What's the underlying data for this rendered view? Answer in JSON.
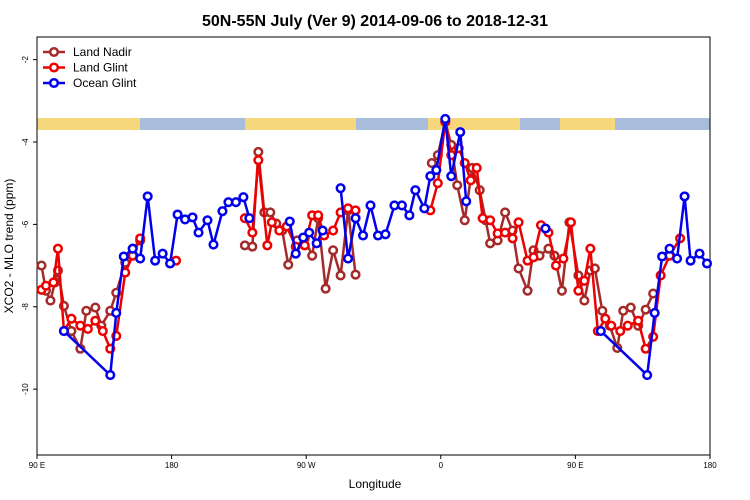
{
  "chart_data": {
    "type": "line",
    "title": "50N-55N July (Ver 9)   2014-09-06 to 2018-12-31",
    "x_label": "Longitude",
    "y_label": "XCO2 - MLO trend (ppm)",
    "xlim": [
      90,
      540
    ],
    "ylim": [
      -11.6,
      -1.45
    ],
    "xticks": [
      {
        "value": 90,
        "label": "90 E"
      },
      {
        "value": 180,
        "label": "180"
      },
      {
        "value": 270,
        "label": "90 W"
      },
      {
        "value": 360,
        "label": "0"
      },
      {
        "value": 450,
        "label": "90 E"
      },
      {
        "value": 540,
        "label": "180"
      }
    ],
    "yticks": [
      -10,
      -8,
      -6,
      -4,
      -2
    ],
    "legend": "upper left",
    "series": [
      {
        "name": "Land Nadir",
        "color": "#a52a2a",
        "x": [
          93,
          96,
          99,
          102,
          104,
          108,
          113,
          119,
          123,
          129,
          133,
          139,
          143,
          149,
          154,
          159,
          194,
          229,
          234,
          238,
          242,
          246,
          250,
          254,
          258,
          264,
          269,
          274,
          278,
          283,
          288,
          293,
          298,
          303,
          328,
          354,
          358,
          363,
          367,
          371,
          376,
          381,
          386,
          390,
          393,
          398,
          403,
          408,
          412,
          418,
          422,
          426,
          432,
          436,
          441,
          446,
          452,
          456,
          460,
          463,
          468,
          473,
          478,
          482,
          487,
          492,
          497,
          502
        ],
        "values": [
          -7.0,
          -7.61,
          -7.85,
          -7.41,
          -7.12,
          -7.98,
          -8.59,
          -9.02,
          -8.1,
          -8.02,
          -8.46,
          -8.1,
          -7.66,
          -6.93,
          -6.59,
          -6.39,
          null,
          -6.51,
          -6.54,
          -4.24,
          -5.71,
          -5.71,
          -5.98,
          -6.15,
          -6.98,
          -6.39,
          -6.34,
          -6.76,
          -5.85,
          -7.56,
          -6.63,
          -7.24,
          -5.66,
          -7.22,
          null,
          -4.51,
          -4.32,
          -3.51,
          -4.07,
          -5.05,
          -5.9,
          -4.63,
          -5.17,
          -5.9,
          -6.46,
          -6.39,
          -5.71,
          -6.15,
          -7.07,
          -7.61,
          -6.63,
          -6.76,
          -6.59,
          -6.76,
          -7.61,
          -5.95,
          -7.24,
          -7.85,
          -7.12,
          -7.07,
          -8.1,
          -8.46,
          -9.0,
          -8.1,
          -8.02,
          -8.46,
          -8.07,
          -7.68
        ]
      },
      {
        "name": "Land Glint",
        "color": "#ee0000",
        "x": [
          93,
          96,
          101,
          104,
          108,
          113,
          119,
          124,
          129,
          134,
          139,
          143,
          149,
          154,
          159,
          171,
          183,
          206,
          229,
          234,
          238,
          244,
          247,
          252,
          257,
          263,
          269,
          274,
          278,
          282,
          288,
          293,
          298,
          303,
          328,
          353,
          358,
          363,
          367,
          372,
          376,
          380,
          384,
          388,
          393,
          398,
          403,
          408,
          412,
          418,
          422,
          427,
          432,
          437,
          442,
          447,
          452,
          456,
          460,
          465,
          470,
          474,
          480,
          485,
          492,
          497,
          502,
          507,
          513,
          520
        ],
        "values": [
          -7.59,
          -7.49,
          -7.41,
          -6.59,
          -8.59,
          -8.29,
          -8.46,
          -8.54,
          -8.34,
          -8.59,
          -9.02,
          -8.71,
          -7.17,
          -6.76,
          -6.34,
          null,
          -6.88,
          null,
          -5.85,
          -6.2,
          -4.44,
          -6.51,
          -5.95,
          -6.15,
          -6.05,
          -6.54,
          -6.51,
          -5.78,
          -5.78,
          -6.27,
          -6.15,
          -5.71,
          -5.61,
          -5.66,
          null,
          -5.66,
          -5.0,
          -3.51,
          -4.32,
          -4.15,
          -4.51,
          -4.93,
          -4.63,
          -5.85,
          -5.9,
          -6.22,
          -6.2,
          -6.34,
          -5.95,
          -6.88,
          -6.8,
          -6.02,
          -6.2,
          -7.0,
          -6.83,
          -5.95,
          -7.61,
          -7.37,
          -6.59,
          -8.59,
          -8.29,
          -8.46,
          -8.59,
          -8.46,
          -8.34,
          -9.02,
          -8.73,
          -7.24,
          -6.76,
          -6.34
        ]
      },
      {
        "name": "Ocean Glint",
        "color": "#0000ee",
        "x": [
          108,
          139,
          143,
          148,
          154,
          159,
          164,
          169,
          174,
          179,
          184,
          189,
          194,
          198,
          204,
          208,
          214,
          218,
          223,
          228,
          232,
          246,
          259,
          263,
          268,
          272,
          277,
          281,
          287,
          293,
          298,
          303,
          308,
          313,
          318,
          323,
          329,
          334,
          339,
          343,
          349,
          353,
          357,
          363,
          367,
          373,
          377,
          400,
          430,
          450,
          467,
          498,
          503,
          508,
          513,
          518,
          523,
          527,
          533,
          538
        ],
        "values": [
          -8.59,
          -9.66,
          -8.15,
          -6.78,
          -6.59,
          -6.83,
          -5.32,
          -6.88,
          -6.71,
          -6.95,
          -5.76,
          -5.88,
          -5.83,
          -6.2,
          -5.9,
          -6.49,
          -5.68,
          -5.46,
          -5.46,
          -5.34,
          -5.85,
          null,
          -5.93,
          -6.71,
          -6.32,
          -6.2,
          -6.46,
          -6.15,
          null,
          -5.12,
          -6.83,
          -5.85,
          -6.27,
          -5.54,
          -6.27,
          -6.24,
          -5.54,
          -5.54,
          -5.78,
          -5.17,
          -5.61,
          -4.83,
          -4.68,
          -3.44,
          -4.83,
          -3.76,
          -5.44,
          null,
          -6.1,
          null,
          -8.59,
          -9.66,
          -8.15,
          -6.78,
          -6.59,
          -6.83,
          -5.32,
          -6.88,
          -6.71,
          -6.95
        ]
      }
    ]
  }
}
